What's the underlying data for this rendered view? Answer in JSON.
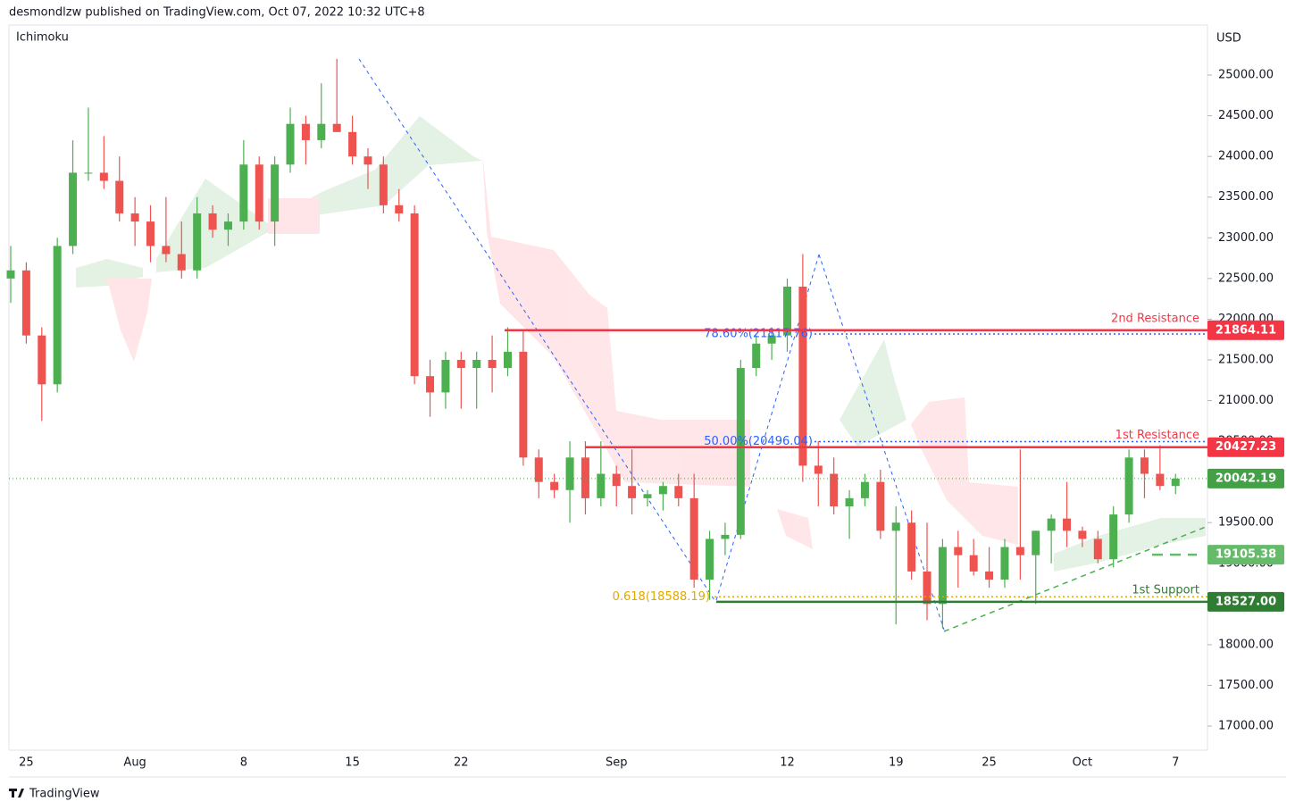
{
  "header": {
    "byline": "desmondlzw published on TradingView.com, Oct 07, 2022 10:32 UTC+8",
    "indicator": "Ichimoku",
    "currency": "USD",
    "brand": "TradingView"
  },
  "chart_data": {
    "type": "candlestick",
    "categories": [
      null,
      "25",
      null,
      null,
      null,
      null,
      null,
      null,
      "Aug",
      null,
      null,
      null,
      null,
      null,
      null,
      "8",
      null,
      null,
      null,
      null,
      null,
      null,
      "15",
      null,
      null,
      null,
      null,
      null,
      null,
      "22",
      null,
      null,
      null,
      null,
      null,
      null,
      null,
      null,
      null,
      "Sep",
      null,
      null,
      null,
      null,
      null,
      null,
      null,
      null,
      null,
      null,
      "12",
      null,
      null,
      null,
      null,
      null,
      null,
      "19",
      null,
      null,
      null,
      null,
      null,
      "25",
      null,
      null,
      null,
      null,
      null,
      "Oct",
      null,
      null,
      null,
      null,
      null,
      "7"
    ],
    "open": [
      22500,
      22600,
      21800,
      21200,
      22900,
      23800,
      23800,
      23700,
      23300,
      23200,
      22900,
      22800,
      22600,
      23300,
      23100,
      23200,
      23900,
      23200,
      23900,
      24400,
      24200,
      24400,
      24300,
      24000,
      23900,
      23400,
      23300,
      21300,
      21100,
      21500,
      21400,
      21500,
      21400,
      21600,
      20300,
      20000,
      19900,
      20300,
      19800,
      20100,
      19950,
      19800,
      19850,
      19950,
      19800,
      18800,
      19300,
      19350,
      21400,
      21700,
      21800,
      22400,
      20200,
      20100,
      19700,
      19800,
      20000,
      19400,
      19500,
      18900,
      18500,
      19200,
      19100,
      18900,
      18800,
      19200,
      19100,
      19400,
      19550,
      19400,
      19300,
      19050,
      19600,
      20300,
      20100,
      19950
    ],
    "high": [
      22900,
      22700,
      21900,
      23000,
      24200,
      24600,
      24250,
      24000,
      23500,
      23400,
      23500,
      23200,
      23500,
      23400,
      23300,
      24200,
      24000,
      24000,
      24600,
      24500,
      24900,
      25200,
      24500,
      24100,
      24000,
      23600,
      23400,
      21500,
      21600,
      21600,
      21600,
      21800,
      21900,
      21850,
      20400,
      20100,
      20500,
      20500,
      20500,
      20200,
      20400,
      19900,
      20000,
      20100,
      20100,
      19400,
      19500,
      21500,
      21800,
      21900,
      22500,
      22800,
      20500,
      20300,
      19900,
      20100,
      20150,
      19700,
      19650,
      19500,
      19300,
      19400,
      19300,
      19200,
      19300,
      20400,
      19400,
      19600,
      20000,
      19450,
      19400,
      19700,
      20400,
      20400,
      20450,
      20100
    ],
    "low": [
      22200,
      21700,
      20750,
      21100,
      22800,
      23700,
      23600,
      23200,
      22900,
      22700,
      22700,
      22500,
      22500,
      23000,
      22900,
      23100,
      23100,
      22900,
      23800,
      23900,
      24100,
      24300,
      23900,
      23600,
      23300,
      23200,
      21200,
      20800,
      20900,
      20900,
      20900,
      21100,
      21300,
      20200,
      19800,
      19800,
      19500,
      19600,
      19700,
      19700,
      19600,
      19700,
      19650,
      19700,
      18700,
      18550,
      19100,
      19300,
      21300,
      21500,
      21600,
      20000,
      19700,
      19600,
      19300,
      19700,
      19300,
      18250,
      18800,
      18300,
      18200,
      18700,
      18850,
      18700,
      18700,
      18800,
      18500,
      19000,
      19200,
      19200,
      19000,
      18950,
      19500,
      19800,
      19900,
      19850
    ],
    "close": [
      22600,
      21800,
      21200,
      22900,
      23800,
      23800,
      23700,
      23300,
      23200,
      22900,
      22800,
      22600,
      23300,
      23100,
      23200,
      23900,
      23200,
      23900,
      24400,
      24200,
      24400,
      24300,
      24000,
      23900,
      23400,
      23300,
      21300,
      21100,
      21500,
      21400,
      21500,
      21400,
      21600,
      20300,
      20000,
      19900,
      20300,
      19800,
      20100,
      19950,
      19800,
      19850,
      19950,
      19800,
      18800,
      19300,
      19350,
      21400,
      21700,
      21800,
      22400,
      20200,
      20100,
      19700,
      19800,
      20000,
      19400,
      19500,
      18900,
      18500,
      19200,
      19100,
      18900,
      18800,
      19200,
      19100,
      19400,
      19550,
      19400,
      19300,
      19050,
      19600,
      20300,
      20100,
      19950,
      20040
    ],
    "up_color": "#4caf50",
    "down_color": "#ef5350",
    "ylim": [
      16704,
      25615
    ],
    "yticks": [
      {
        "value": 17000,
        "label": "17000.00"
      },
      {
        "value": 17500,
        "label": "17500.00"
      },
      {
        "value": 18000,
        "label": "18000.00"
      },
      {
        "value": 18500,
        "label": "18500.00"
      },
      {
        "value": 19000,
        "label": "19000.00"
      },
      {
        "value": 19500,
        "label": "19500.00"
      },
      {
        "value": 20000,
        "label": "20000.00"
      },
      {
        "value": 20500,
        "label": "20500.00"
      },
      {
        "value": 21000,
        "label": "21000.00"
      },
      {
        "value": 21500,
        "label": "21500.00"
      },
      {
        "value": 22000,
        "label": "22000.00"
      },
      {
        "value": 22500,
        "label": "22500.00"
      },
      {
        "value": 23000,
        "label": "23000.00"
      },
      {
        "value": 23500,
        "label": "23500.00"
      },
      {
        "value": 24000,
        "label": "24000.00"
      },
      {
        "value": 24500,
        "label": "24500.00"
      },
      {
        "value": 25000,
        "label": "25000.00"
      }
    ],
    "levels": [
      {
        "name": "2nd Resistance",
        "value": 21864.11,
        "color": "#f23645",
        "style": "solid"
      },
      {
        "name": "1st Resistance",
        "value": 20427.23,
        "color": "#f23645",
        "style": "solid"
      },
      {
        "value": 20042.19,
        "color": "#43a047",
        "style": "dotted"
      },
      {
        "value": 19105.38,
        "color": "#66bb6a",
        "style": "dashed"
      },
      {
        "name": "1st Support",
        "value": 18527,
        "value_label": "18527.00",
        "color": "#2e7d32",
        "style": "solid"
      }
    ],
    "fib_levels": [
      {
        "text": "78.60%(21817.76)",
        "value": 21817.76,
        "color": "#2962ff"
      },
      {
        "text": "50.00%(20496.04)",
        "value": 20496.04,
        "color": "#2962ff"
      },
      {
        "text": "0.618(18588.19)",
        "value": 18588.19,
        "color": "#e0a800"
      }
    ]
  }
}
